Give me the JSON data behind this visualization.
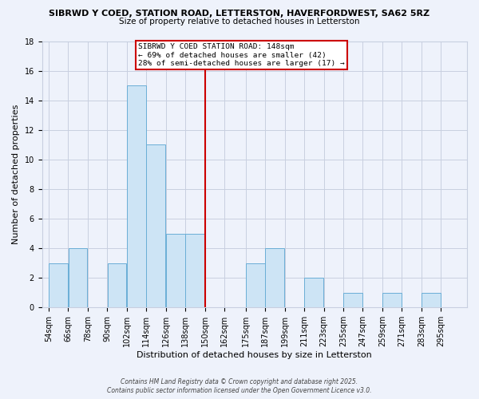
{
  "title_line1": "SIBRWD Y COED, STATION ROAD, LETTERSTON, HAVERFORDWEST, SA62 5RZ",
  "title_line2": "Size of property relative to detached houses in Letterston",
  "xlabel": "Distribution of detached houses by size in Letterston",
  "ylabel": "Number of detached properties",
  "bin_labels": [
    "54sqm",
    "66sqm",
    "78sqm",
    "90sqm",
    "102sqm",
    "114sqm",
    "126sqm",
    "138sqm",
    "150sqm",
    "162sqm",
    "175sqm",
    "187sqm",
    "199sqm",
    "211sqm",
    "223sqm",
    "235sqm",
    "247sqm",
    "259sqm",
    "271sqm",
    "283sqm",
    "295sqm"
  ],
  "bar_heights": [
    3,
    4,
    0,
    3,
    15,
    11,
    5,
    5,
    0,
    0,
    3,
    4,
    0,
    2,
    0,
    1,
    0,
    1,
    0,
    1,
    0
  ],
  "bar_color": "#cde4f5",
  "bar_edge_color": "#6aaed6",
  "background_color": "#eef2fb",
  "grid_color": "#c8cfe0",
  "vline_x_idx": 8,
  "vline_color": "#cc0000",
  "annotation_text": "SIBRWD Y COED STATION ROAD: 148sqm\n← 69% of detached houses are smaller (42)\n28% of semi-detached houses are larger (17) →",
  "annotation_box_color": "#ffffff",
  "annotation_box_edge": "#cc0000",
  "ylim": [
    0,
    18
  ],
  "yticks": [
    0,
    2,
    4,
    6,
    8,
    10,
    12,
    14,
    16,
    18
  ],
  "footer_line1": "Contains HM Land Registry data © Crown copyright and database right 2025.",
  "footer_line2": "Contains public sector information licensed under the Open Government Licence v3.0.",
  "bin_edges": [
    54,
    66,
    78,
    90,
    102,
    114,
    126,
    138,
    150,
    162,
    175,
    187,
    199,
    211,
    223,
    235,
    247,
    259,
    271,
    283,
    295,
    307
  ],
  "title1_fontsize": 8.0,
  "title2_fontsize": 7.5,
  "axis_label_fontsize": 8.0,
  "tick_fontsize": 7.0,
  "annot_fontsize": 6.8,
  "footer_fontsize": 5.5
}
